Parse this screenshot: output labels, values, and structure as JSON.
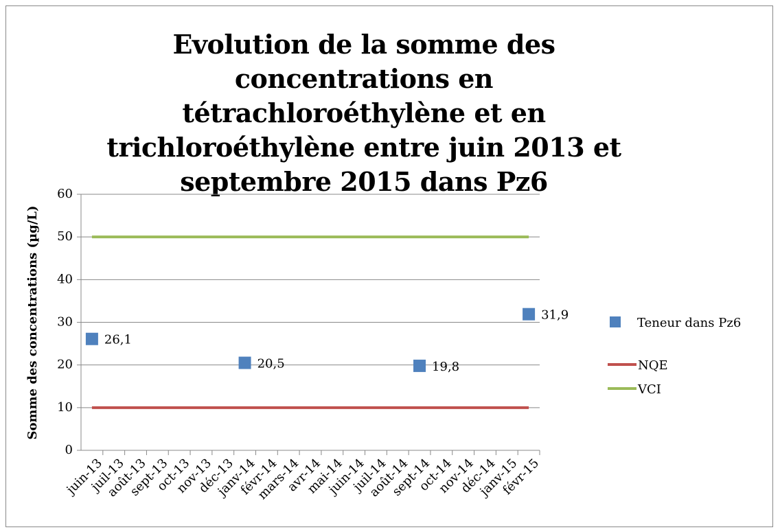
{
  "chart_data": {
    "type": "scatter-line",
    "title": "Evolution de la somme des concentrations en tétrachloroéthylène et en trichloroéthylène entre juin 2013 et septembre 2015 dans Pz6",
    "y_label": "Somme des concentrations  (µg/L)",
    "categories": [
      "juin-13",
      "juil-13",
      "août-13",
      "sept-13",
      "oct-13",
      "nov-13",
      "déc-13",
      "janv-14",
      "févr-14",
      "mars-14",
      "avr-14",
      "mai-14",
      "juin-14",
      "juil-14",
      "août-14",
      "sept-14",
      "oct-14",
      "nov-14",
      "déc-14",
      "janv-15",
      "févr-15"
    ],
    "series": [
      {
        "name": "Teneur dans Pz6",
        "color": "#4f81bd",
        "mark": "square",
        "values": [
          26.1,
          null,
          null,
          null,
          null,
          null,
          null,
          20.5,
          null,
          null,
          null,
          null,
          null,
          null,
          null,
          19.8,
          null,
          null,
          null,
          null,
          31.9
        ],
        "value_labels": [
          "26,1",
          null,
          null,
          null,
          null,
          null,
          null,
          "20,5",
          null,
          null,
          null,
          null,
          null,
          null,
          null,
          "19,8",
          null,
          null,
          null,
          null,
          "31,9"
        ]
      },
      {
        "name": "NQE",
        "color": "#c0504d",
        "mark": "line",
        "values": [
          10,
          10,
          10,
          10,
          10,
          10,
          10,
          10,
          10,
          10,
          10,
          10,
          10,
          10,
          10,
          10,
          10,
          10,
          10,
          10,
          10
        ]
      },
      {
        "name": "VCI",
        "color": "#9bbb59",
        "mark": "line",
        "values": [
          50,
          50,
          50,
          50,
          50,
          50,
          50,
          50,
          50,
          50,
          50,
          50,
          50,
          50,
          50,
          50,
          50,
          50,
          50,
          50,
          50
        ]
      }
    ],
    "ylim": [
      0,
      60
    ],
    "yticks": [
      0,
      10,
      20,
      30,
      40,
      50,
      60
    ],
    "grid": true,
    "legend": "right"
  }
}
